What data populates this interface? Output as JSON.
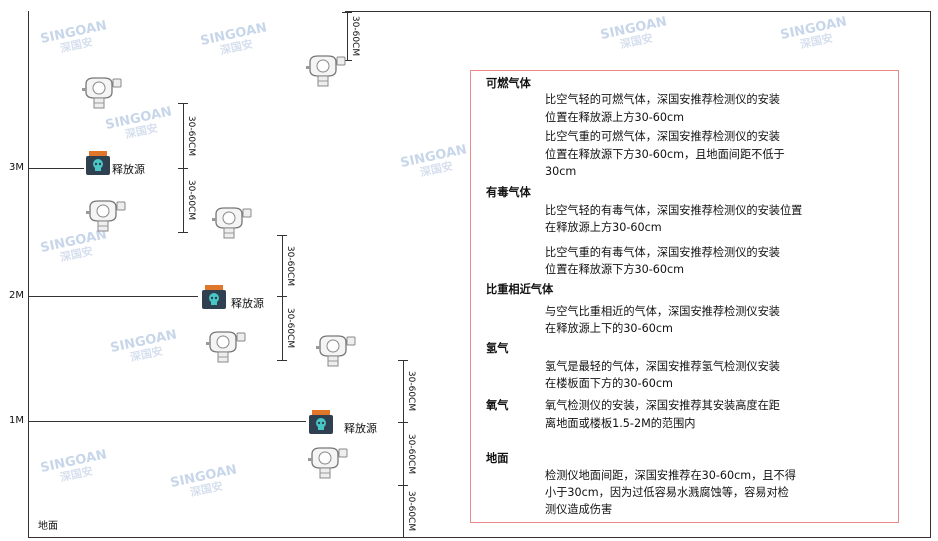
{
  "watermark": {
    "brand": "SINGOAN",
    "cn": "深国安"
  },
  "levels": {
    "m3": "3M",
    "m2": "2M",
    "m1": "1M",
    "ground": "地面"
  },
  "source_label": "释放源",
  "dimension_label": "30-60CM",
  "notes": {
    "combustible": {
      "title": "可燃气体",
      "lighter": [
        "比空气轻的可燃气体，深国安推荐检测仪的安装",
        "位置在释放源上方30-60cm"
      ],
      "heavier": [
        "比空气重的可燃气体，深国安推荐检测仪的安装",
        "位置在释放源下方30-60cm，且地面间距不低于",
        "30cm"
      ]
    },
    "toxic": {
      "title": "有毒气体",
      "lighter": [
        "比空气轻的有毒气体，深国安推荐检测仪的安装位置",
        "在释放源上方30-60cm"
      ],
      "heavier": [
        "比空气重的有毒气体，深国安推荐检测仪的安装",
        "位置在释放源下方30-60cm"
      ]
    },
    "similar": {
      "title": "比重相近气体",
      "lines": [
        "与空气比重相近的气体，深国安推荐检测仪安装",
        "在释放源上下的30-60cm"
      ]
    },
    "hydrogen": {
      "title": "氢气",
      "lines": [
        "氢气是最轻的气体，深国安推荐氢气检测仪安装",
        "在楼板面下方的30-60cm"
      ]
    },
    "oxygen": {
      "title": "氧气",
      "lines": [
        "氧气检测仪的安装，深国安推荐其安装高度在距",
        "离地面或楼板1.5-2M的范围内"
      ]
    },
    "ground": {
      "title": "地面",
      "lines": [
        "检测仪地面间距，深国安推荐在30-60cm，且不得",
        "小于30cm，因为过低容易水溅腐蚀等，容易对检",
        "测仪造成伤害"
      ]
    }
  },
  "colors": {
    "frame": "#333333",
    "note_border": "#e98a8a",
    "source_lid": "#e0762a",
    "source_body": "#2f4150",
    "skull": "#49c6c6"
  }
}
